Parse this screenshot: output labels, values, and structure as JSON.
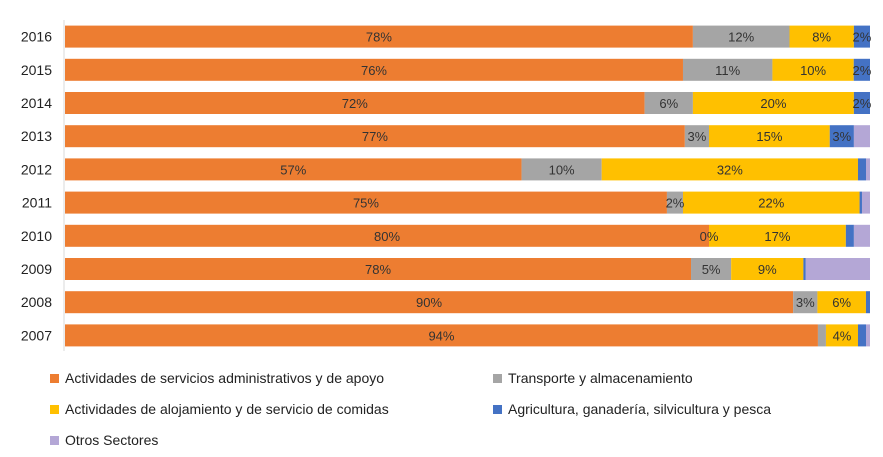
{
  "chart_data": {
    "type": "bar",
    "orientation": "horizontal",
    "stacked": true,
    "normalized": true,
    "categories": [
      "2016",
      "2015",
      "2014",
      "2013",
      "2012",
      "2011",
      "2010",
      "2009",
      "2008",
      "2007"
    ],
    "series": [
      {
        "name": "Actividades de servicios administrativos y de apoyo",
        "color": "#ED7D31",
        "values": [
          78,
          76,
          72,
          77,
          57,
          75,
          80,
          78,
          90,
          94
        ],
        "labels": [
          "78%",
          "76%",
          "72%",
          "77%",
          "57%",
          "75%",
          "80%",
          "78%",
          "90%",
          "94%"
        ]
      },
      {
        "name": "Transporte y almacenamiento",
        "color": "#A5A5A5",
        "values": [
          12,
          11,
          6,
          3,
          10,
          2,
          0,
          5,
          3,
          1
        ],
        "labels": [
          "12%",
          "11%",
          "6%",
          "3%",
          "10%",
          "2%",
          "0%",
          "5%",
          "3%",
          ""
        ]
      },
      {
        "name": "Actividades de alojamiento y de servicio de comidas",
        "color": "#FFC000",
        "values": [
          8,
          10,
          20,
          15,
          32,
          22,
          17,
          9,
          6,
          4
        ],
        "labels": [
          "8%",
          "10%",
          "20%",
          "15%",
          "32%",
          "22%",
          "17%",
          "9%",
          "6%",
          "4%"
        ]
      },
      {
        "name": "Agricultura, ganadería,  silvicultura y pesca",
        "color": "#4472C4",
        "values": [
          2,
          2,
          2,
          3,
          1,
          0.3,
          1,
          0.3,
          0.5,
          1
        ],
        "labels": [
          "2%",
          "2%",
          "2%",
          "3%",
          "",
          "",
          "",
          "",
          "",
          ""
        ]
      },
      {
        "name": "Otros Sectores",
        "color": "#B4A7D6",
        "values": [
          0,
          0,
          0,
          2,
          0.5,
          1,
          2,
          8,
          0,
          0.5
        ],
        "labels": [
          "",
          "",
          "",
          "",
          "",
          "",
          "",
          "",
          "",
          ""
        ]
      }
    ],
    "xlim": [
      0,
      100
    ],
    "grid": false,
    "legend_position": "bottom"
  }
}
